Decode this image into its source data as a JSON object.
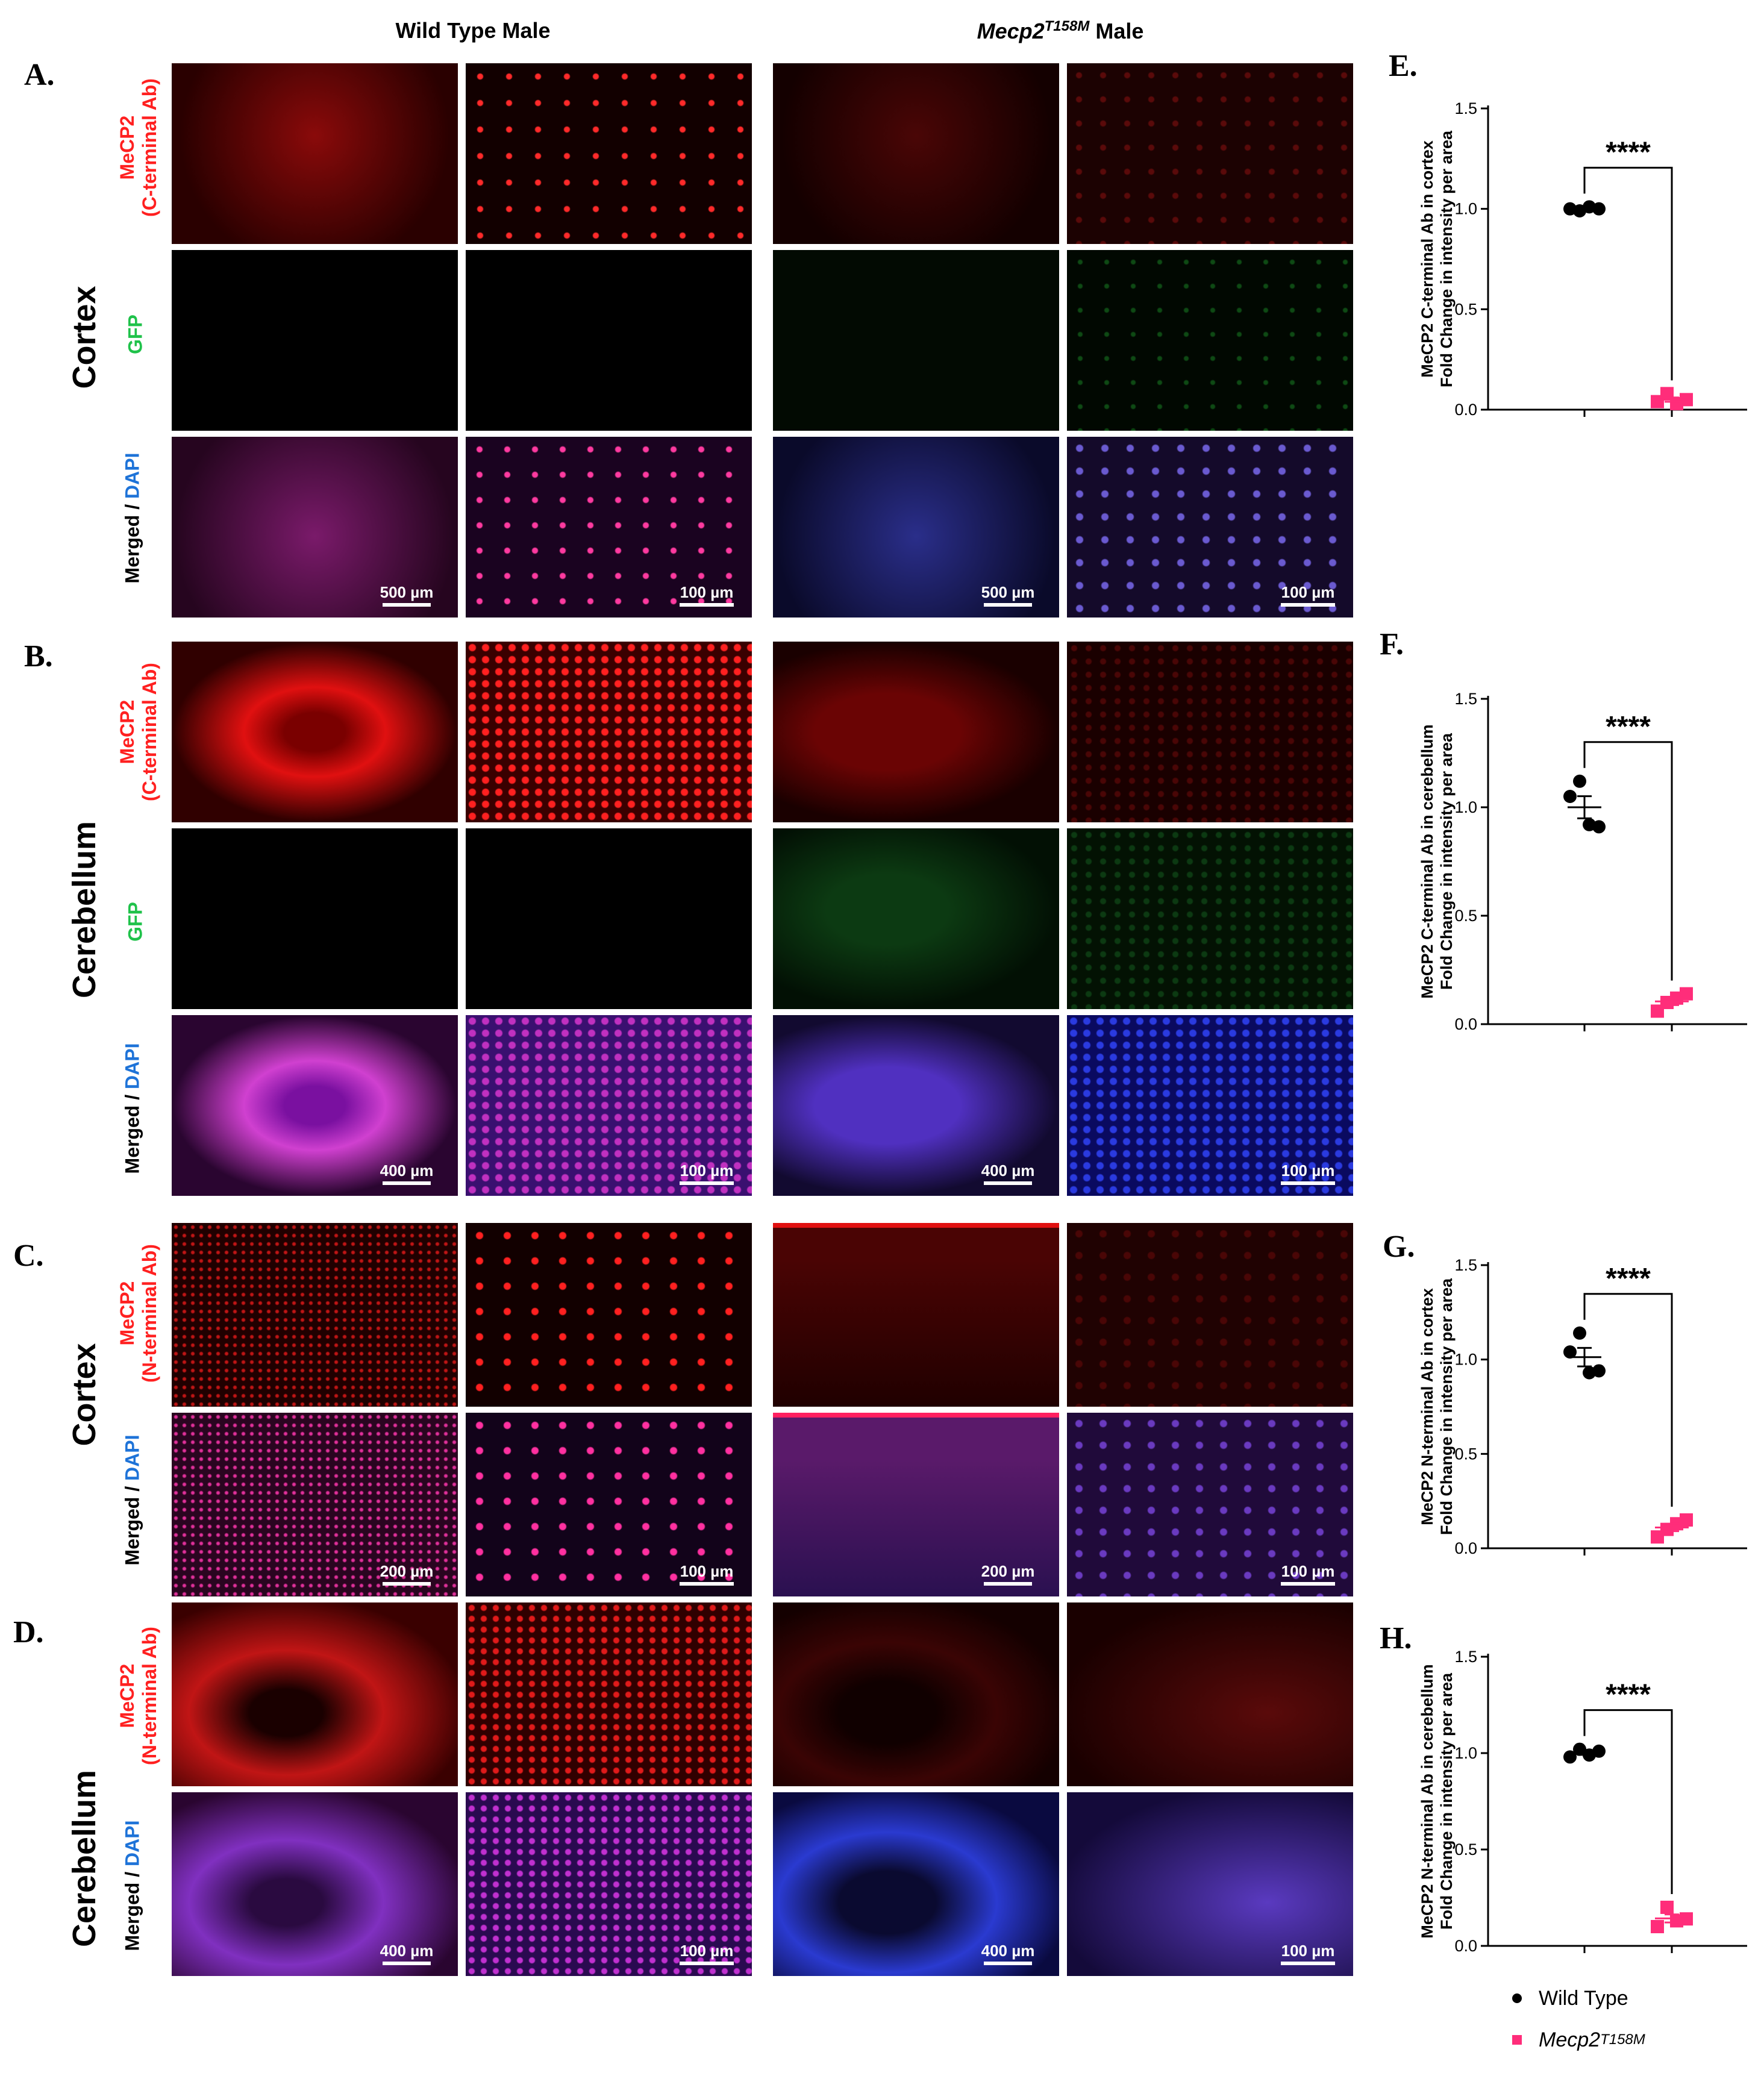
{
  "columns": {
    "wt": "Wild Type Male",
    "mut_gene": "Mecp2",
    "mut_sup": "T158M",
    "mut_suffix": " Male"
  },
  "letters": {
    "a": "A.",
    "b": "B.",
    "c": "C.",
    "d": "D.",
    "e": "E.",
    "f": "F.",
    "g": "G.",
    "h": "H."
  },
  "regions": {
    "cortex": "Cortex",
    "cerebellum": "Cerebellum"
  },
  "rows": {
    "mecp2": "MeCP2",
    "c_ab": "(C-terminal Ab)",
    "n_ab": "(N-terminal Ab)",
    "gfp": "GFP",
    "merged": "Merged / ",
    "dapi": "DAPI"
  },
  "scalebars": {
    "a_wt": "500 µm",
    "a_wt_zoom": "100 µm",
    "a_mut": "500 µm",
    "a_mut_zoom": "100 µm",
    "b_wt": "400 µm",
    "b_wt_zoom": "100 µm",
    "b_mut": "400 µm",
    "b_mut_zoom": "100 µm",
    "c_wt": "200 µm",
    "c_wt_zoom": "100 µm",
    "c_mut": "200 µm",
    "c_mut_zoom": "100 µm",
    "d_wt": "400 µm",
    "d_wt_zoom": "100 µm",
    "d_mut": "400 µm",
    "d_mut_zoom": "100 µm"
  },
  "colors": {
    "wt": "#000000",
    "mut": "#ff2d7a",
    "mecp2": "#ff2020",
    "gfp": "#1fc24a",
    "dapi": "#1e73d8"
  },
  "legend": {
    "wt": "Wild Type",
    "mut_gene": "Mecp2",
    "mut_sup": "T158M"
  },
  "chart_data": [
    {
      "type": "scatter",
      "panel": "E",
      "ylabel1": "MeCP2 C-terminal Ab in cortex",
      "ylabel2": "Fold Change in intensity per area",
      "ylim": [
        0,
        1.5
      ],
      "yticks": [
        "0.0",
        "0.5",
        "1.0",
        "1.5"
      ],
      "significance": "****",
      "series": [
        {
          "name": "Wild Type",
          "values": [
            1.0,
            0.99,
            1.01,
            1.0
          ]
        },
        {
          "name": "Mecp2 T158M",
          "values": [
            0.04,
            0.08,
            0.03,
            0.05
          ]
        }
      ]
    },
    {
      "type": "scatter",
      "panel": "F",
      "ylabel1": "MeCP2 C-terminal Ab in cerebellum",
      "ylabel2": "Fold Change in intensity per area",
      "ylim": [
        0,
        1.5
      ],
      "yticks": [
        "0.0",
        "0.5",
        "1.0",
        "1.5"
      ],
      "significance": "****",
      "series": [
        {
          "name": "Wild Type",
          "values": [
            1.05,
            1.12,
            0.92,
            0.91
          ]
        },
        {
          "name": "Mecp2 T158M",
          "values": [
            0.06,
            0.1,
            0.12,
            0.14
          ]
        }
      ]
    },
    {
      "type": "scatter",
      "panel": "G",
      "ylabel1": "MeCP2 N-terminal Ab in cortex",
      "ylabel2": "Fold Change in intensity per area",
      "ylim": [
        0,
        1.5
      ],
      "yticks": [
        "0.0",
        "0.5",
        "1.0",
        "1.5"
      ],
      "significance": "****",
      "series": [
        {
          "name": "Wild Type",
          "values": [
            1.04,
            1.14,
            0.93,
            0.94
          ]
        },
        {
          "name": "Mecp2 T158M",
          "values": [
            0.06,
            0.1,
            0.13,
            0.15
          ]
        }
      ]
    },
    {
      "type": "scatter",
      "panel": "H",
      "ylabel1": "MeCP2 N-terminal Ab in cerebellum",
      "ylabel2": "Fold Change in intensity per area",
      "ylim": [
        0,
        1.5
      ],
      "yticks": [
        "0.0",
        "0.5",
        "1.0",
        "1.5"
      ],
      "significance": "****",
      "series": [
        {
          "name": "Wild Type",
          "values": [
            0.98,
            1.02,
            0.99,
            1.01
          ]
        },
        {
          "name": "Mecp2 T158M",
          "values": [
            0.1,
            0.2,
            0.13,
            0.14
          ]
        }
      ]
    }
  ]
}
